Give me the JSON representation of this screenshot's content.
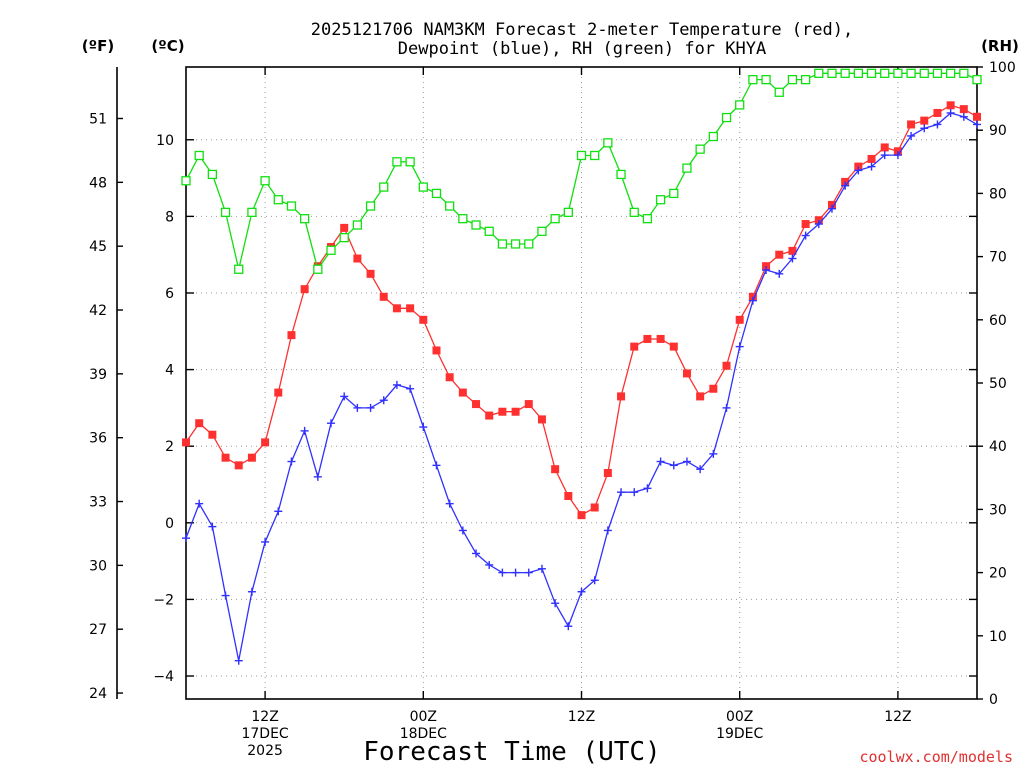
{
  "chart_data": {
    "type": "line",
    "title_line1": "2025121706 NAM3KM Forecast 2-meter Temperature (red),",
    "title_line2": "Dewpoint (blue), RH (green) for KHYA",
    "xlabel": "Forecast Time (UTC)",
    "credit": "coolwx.com/models",
    "left_outer_unit": "(ºF)",
    "left_inner_unit": "(ºC)",
    "right_unit": "(RH)",
    "x_hours_start": 0,
    "x_hours_end": 60,
    "x_ticks": [
      {
        "hour": 6,
        "lines": [
          "12Z",
          "17DEC",
          "2025"
        ]
      },
      {
        "hour": 18,
        "lines": [
          "00Z",
          "18DEC"
        ]
      },
      {
        "hour": 30,
        "lines": [
          "12Z"
        ]
      },
      {
        "hour": 42,
        "lines": [
          "00Z",
          "19DEC"
        ]
      },
      {
        "hour": 54,
        "lines": [
          "12Z"
        ]
      }
    ],
    "c_ylim": [
      -4.6,
      11.9
    ],
    "c_ticks": [
      -4,
      -2,
      0,
      2,
      4,
      6,
      8,
      10
    ],
    "c_tick_labels": [
      "−4",
      "−2",
      "0",
      "2",
      "4",
      "6",
      "8",
      "10"
    ],
    "f_ticks": [
      24,
      27,
      30,
      33,
      36,
      39,
      42,
      45,
      48,
      51
    ],
    "rh_ylim": [
      0,
      100
    ],
    "rh_ticks": [
      0,
      10,
      20,
      30,
      40,
      50,
      60,
      70,
      80,
      90,
      100
    ],
    "series": [
      {
        "name": "2-meter Temperature",
        "unit": "C",
        "color": "#ff3030",
        "marker": "filled-square",
        "values": [
          2.1,
          2.6,
          2.3,
          1.7,
          1.5,
          1.7,
          2.1,
          3.4,
          4.9,
          6.1,
          6.7,
          7.2,
          7.7,
          6.9,
          6.5,
          5.9,
          5.6,
          5.6,
          5.3,
          4.5,
          3.8,
          3.4,
          3.1,
          2.8,
          2.9,
          2.9,
          3.1,
          2.7,
          1.4,
          0.7,
          0.2,
          0.4,
          1.3,
          3.3,
          4.6,
          4.8,
          4.8,
          4.6,
          3.9,
          3.3,
          3.5,
          4.1,
          5.3,
          5.9,
          6.7,
          7.0,
          7.1,
          7.8,
          7.9,
          8.3,
          8.9,
          9.3,
          9.5,
          9.8,
          9.7,
          10.4,
          10.5,
          10.7,
          10.9,
          10.8,
          10.6
        ]
      },
      {
        "name": "Dewpoint",
        "unit": "C",
        "color": "#3030ff",
        "marker": "plus",
        "values": [
          -0.4,
          0.5,
          -0.1,
          -1.9,
          -3.6,
          -1.8,
          -0.5,
          0.3,
          1.6,
          2.4,
          1.2,
          2.6,
          3.3,
          3.0,
          3.0,
          3.2,
          3.6,
          3.5,
          2.5,
          1.5,
          0.5,
          -0.2,
          -0.8,
          -1.1,
          -1.3,
          -1.3,
          -1.3,
          -1.2,
          -2.1,
          -2.7,
          -1.8,
          -1.5,
          -0.2,
          0.8,
          0.8,
          0.9,
          1.6,
          1.5,
          1.6,
          1.4,
          1.8,
          3.0,
          4.6,
          5.8,
          6.6,
          6.5,
          6.9,
          7.5,
          7.8,
          8.2,
          8.8,
          9.2,
          9.3,
          9.6,
          9.6,
          10.1,
          10.3,
          10.4,
          10.7,
          10.6,
          10.4
        ]
      },
      {
        "name": "RH",
        "unit": "%",
        "color": "#10e010",
        "marker": "open-square",
        "values": [
          82,
          86,
          83,
          77,
          68,
          77,
          82,
          79,
          78,
          76,
          68,
          71,
          73,
          75,
          78,
          81,
          85,
          85,
          81,
          80,
          78,
          76,
          75,
          74,
          72,
          72,
          72,
          74,
          76,
          77,
          86,
          86,
          88,
          83,
          77,
          76,
          79,
          80,
          84,
          87,
          89,
          92,
          94,
          98,
          98,
          96,
          98,
          98,
          99,
          99,
          99,
          99,
          99,
          99,
          99,
          99,
          99,
          99,
          99,
          99,
          98
        ]
      }
    ]
  }
}
